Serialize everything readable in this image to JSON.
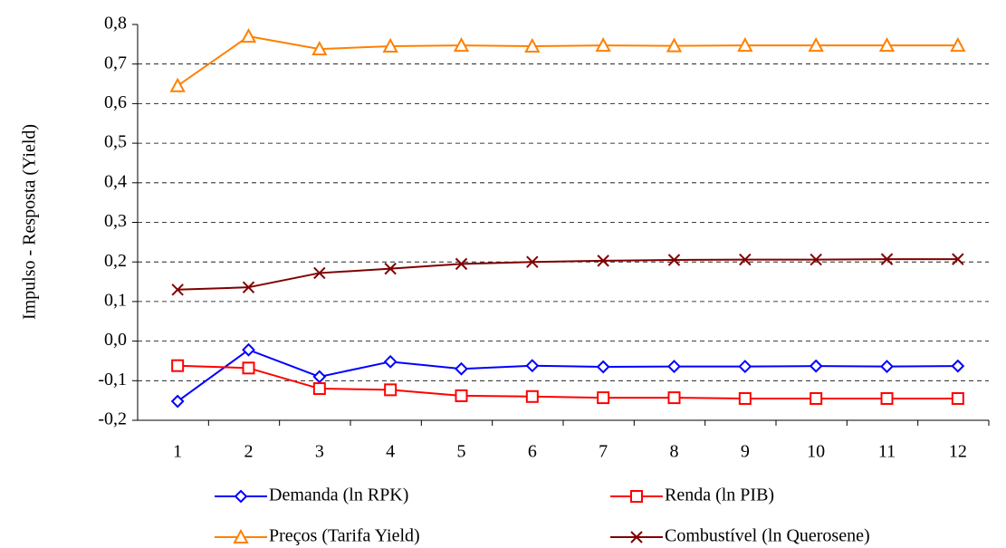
{
  "chart_data": {
    "type": "line",
    "y_label": "Impulso - Resposta (Yield)",
    "categories": [
      "1",
      "2",
      "3",
      "4",
      "5",
      "6",
      "7",
      "8",
      "9",
      "10",
      "11",
      "12"
    ],
    "ylim": [
      -0.2,
      0.8
    ],
    "yticks": [
      {
        "value": -0.2,
        "label": "-0,2"
      },
      {
        "value": -0.1,
        "label": "-0,1"
      },
      {
        "value": 0,
        "label": "0,0"
      },
      {
        "value": 0.1,
        "label": "0,1"
      },
      {
        "value": 0.2,
        "label": "0,2"
      },
      {
        "value": 0.3,
        "label": "0,3"
      },
      {
        "value": 0.4,
        "label": "0,4"
      },
      {
        "value": 0.5,
        "label": "0,5"
      },
      {
        "value": 0.6,
        "label": "0,6"
      },
      {
        "value": 0.7,
        "label": "0,7"
      },
      {
        "value": 0.8,
        "label": "0,8"
      }
    ],
    "grid": true,
    "series": [
      {
        "name": "Demanda (ln RPK)",
        "color": "#0000ff",
        "marker": "diamond",
        "values": [
          -0.152,
          -0.022,
          -0.09,
          -0.052,
          -0.07,
          -0.062,
          -0.065,
          -0.064,
          -0.064,
          -0.063,
          -0.064,
          -0.063
        ]
      },
      {
        "name": "Renda (ln PIB)",
        "color": "#ff0000",
        "marker": "square",
        "values": [
          -0.062,
          -0.068,
          -0.12,
          -0.123,
          -0.138,
          -0.14,
          -0.143,
          -0.143,
          -0.145,
          -0.145,
          -0.145,
          -0.145
        ]
      },
      {
        "name": "Preços (Tarifa Yield)",
        "color": "#ff8000",
        "marker": "triangle",
        "values": [
          0.645,
          0.77,
          0.738,
          0.745,
          0.747,
          0.745,
          0.747,
          0.746,
          0.747,
          0.747,
          0.747,
          0.747
        ]
      },
      {
        "name": "Combustível (ln Querosene)",
        "color": "#800000",
        "marker": "x",
        "values": [
          0.13,
          0.136,
          0.172,
          0.183,
          0.195,
          0.2,
          0.203,
          0.205,
          0.206,
          0.206,
          0.207,
          0.207
        ]
      }
    ]
  }
}
